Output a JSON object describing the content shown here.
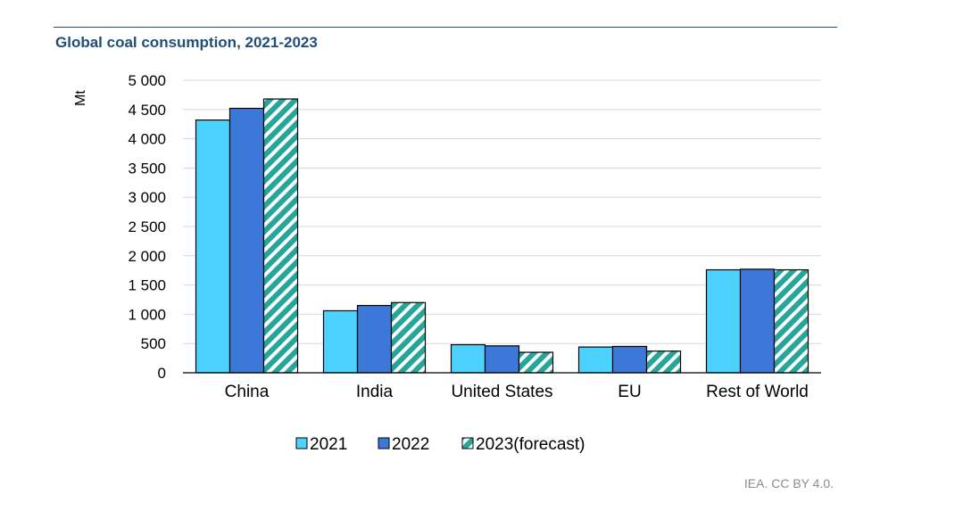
{
  "chart_data": {
    "type": "bar",
    "title": "Global coal consumption, 2021-2023",
    "ylabel": "Mt",
    "xlabel": "",
    "ylim": [
      0,
      5000
    ],
    "yticks": [
      0,
      500,
      1000,
      1500,
      2000,
      2500,
      3000,
      3500,
      4000,
      4500,
      5000
    ],
    "ytick_labels": [
      "0",
      "500",
      "1 000",
      "1 500",
      "2 000",
      "2 500",
      "3 000",
      "3 500",
      "4 000",
      "4 500",
      "5 000"
    ],
    "grid": true,
    "legend_position": "bottom",
    "categories": [
      "China",
      "India",
      "United States",
      "EU",
      "Rest of World"
    ],
    "series": [
      {
        "name": "2021",
        "color": "#4dd2ff",
        "pattern": "solid",
        "values": [
          4320,
          1060,
          480,
          440,
          1760
        ]
      },
      {
        "name": "2022",
        "color": "#3c78d8",
        "pattern": "solid",
        "values": [
          4520,
          1150,
          460,
          450,
          1770
        ]
      },
      {
        "name": "2023(forecast)",
        "color": "#26a69a",
        "pattern": "hatched",
        "values": [
          4680,
          1200,
          350,
          370,
          1760
        ]
      }
    ]
  },
  "footer": {
    "source": "IEA. CC BY 4.0."
  }
}
